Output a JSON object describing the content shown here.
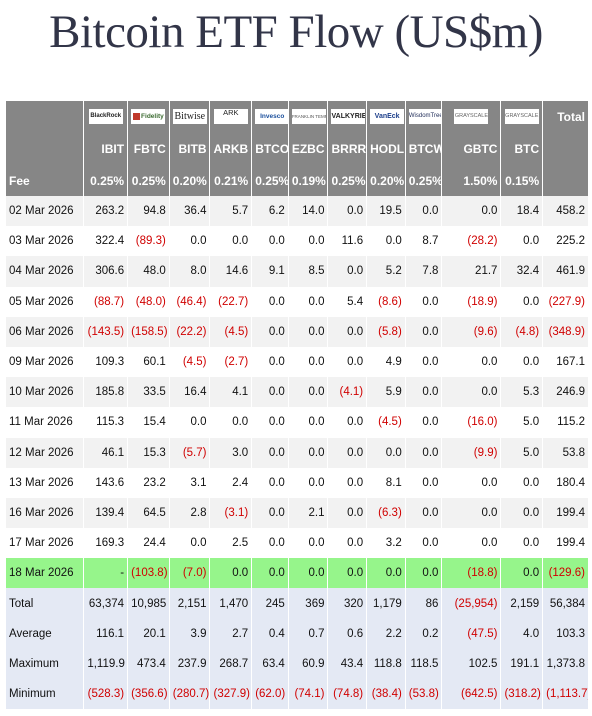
{
  "title": "Bitcoin ETF Flow (US$m)",
  "header": {
    "logos": [
      {
        "name": "blackrock-logo",
        "text": "BlackRock"
      },
      {
        "name": "fidelity-logo",
        "text": "Fidelity"
      },
      {
        "name": "bitwise-logo",
        "text": "Bitwise"
      },
      {
        "name": "ark-logo",
        "text": "ARK"
      },
      {
        "name": "invesco-logo",
        "text": "Invesco"
      },
      {
        "name": "franklin-templeton-logo",
        "text": "FRANKLIN TEMPLETON"
      },
      {
        "name": "valkyrie-logo",
        "text": "VALKYRIE"
      },
      {
        "name": "vaneck-logo",
        "text": "VanEck"
      },
      {
        "name": "wisdomtree-logo",
        "text": "WisdomTree"
      },
      {
        "name": "grayscale-logo",
        "text": "GRAYSCALE"
      },
      {
        "name": "grayscale-mini-logo",
        "text": "GRAYSCALE"
      }
    ],
    "total_label": "Total",
    "tickers": [
      "IBIT",
      "FBTC",
      "BITB",
      "ARKB",
      "BTCO",
      "EZBC",
      "BRRR",
      "HODL",
      "BTCW",
      "GBTC",
      "BTC"
    ],
    "fee_label": "Fee",
    "fees": [
      "0.25%",
      "0.25%",
      "0.20%",
      "0.21%",
      "0.25%",
      "0.19%",
      "0.25%",
      "0.20%",
      "0.25%",
      "1.50%",
      "0.15%"
    ]
  },
  "rows": [
    {
      "date": "02 Mar 2026",
      "values": [
        "263.2",
        "94.8",
        "36.4",
        "5.7",
        "6.2",
        "14.0",
        "0.0",
        "19.5",
        "0.0",
        "0.0",
        "18.4"
      ],
      "total": "458.2"
    },
    {
      "date": "03 Mar 2026",
      "values": [
        "322.4",
        "(89.3)",
        "0.0",
        "0.0",
        "0.0",
        "0.0",
        "11.6",
        "0.0",
        "8.7",
        "(28.2)",
        "0.0"
      ],
      "total": "225.2"
    },
    {
      "date": "04 Mar 2026",
      "values": [
        "306.6",
        "48.0",
        "8.0",
        "14.6",
        "9.1",
        "8.5",
        "0.0",
        "5.2",
        "7.8",
        "21.7",
        "32.4"
      ],
      "total": "461.9"
    },
    {
      "date": "05 Mar 2026",
      "values": [
        "(88.7)",
        "(48.0)",
        "(46.4)",
        "(22.7)",
        "0.0",
        "0.0",
        "5.4",
        "(8.6)",
        "0.0",
        "(18.9)",
        "0.0"
      ],
      "total": "(227.9)"
    },
    {
      "date": "06 Mar 2026",
      "values": [
        "(143.5)",
        "(158.5)",
        "(22.2)",
        "(4.5)",
        "0.0",
        "0.0",
        "0.0",
        "(5.8)",
        "0.0",
        "(9.6)",
        "(4.8)"
      ],
      "total": "(348.9)"
    },
    {
      "date": "09 Mar 2026",
      "values": [
        "109.3",
        "60.1",
        "(4.5)",
        "(2.7)",
        "0.0",
        "0.0",
        "0.0",
        "4.9",
        "0.0",
        "0.0",
        "0.0"
      ],
      "total": "167.1"
    },
    {
      "date": "10 Mar 2026",
      "values": [
        "185.8",
        "33.5",
        "16.4",
        "4.1",
        "0.0",
        "0.0",
        "(4.1)",
        "5.9",
        "0.0",
        "0.0",
        "5.3"
      ],
      "total": "246.9"
    },
    {
      "date": "11 Mar 2026",
      "values": [
        "115.3",
        "15.4",
        "0.0",
        "0.0",
        "0.0",
        "0.0",
        "0.0",
        "(4.5)",
        "0.0",
        "(16.0)",
        "5.0"
      ],
      "total": "115.2"
    },
    {
      "date": "12 Mar 2026",
      "values": [
        "46.1",
        "15.3",
        "(5.7)",
        "3.0",
        "0.0",
        "0.0",
        "0.0",
        "0.0",
        "0.0",
        "(9.9)",
        "5.0"
      ],
      "total": "53.8"
    },
    {
      "date": "13 Mar 2026",
      "values": [
        "143.6",
        "23.2",
        "3.1",
        "2.4",
        "0.0",
        "0.0",
        "0.0",
        "8.1",
        "0.0",
        "0.0",
        "0.0"
      ],
      "total": "180.4"
    },
    {
      "date": "16 Mar 2026",
      "values": [
        "139.4",
        "64.5",
        "2.8",
        "(3.1)",
        "0.0",
        "2.1",
        "0.0",
        "(6.3)",
        "0.0",
        "0.0",
        "0.0"
      ],
      "total": "199.4"
    },
    {
      "date": "17 Mar 2026",
      "values": [
        "169.3",
        "24.4",
        "0.0",
        "2.5",
        "0.0",
        "0.0",
        "0.0",
        "3.2",
        "0.0",
        "0.0",
        "0.0"
      ],
      "total": "199.4"
    },
    {
      "date": "18 Mar 2026",
      "values": [
        "-",
        "(103.8)",
        "(7.0)",
        "0.0",
        "0.0",
        "0.0",
        "0.0",
        "0.0",
        "0.0",
        "(18.8)",
        "0.0"
      ],
      "total": "(129.6)",
      "highlight": true
    }
  ],
  "stats": [
    {
      "label": "Total",
      "values": [
        "63,374",
        "10,985",
        "2,151",
        "1,470",
        "245",
        "369",
        "320",
        "1,179",
        "86",
        "(25,954)",
        "2,159"
      ],
      "total": "56,384"
    },
    {
      "label": "Average",
      "values": [
        "116.1",
        "20.1",
        "3.9",
        "2.7",
        "0.4",
        "0.7",
        "0.6",
        "2.2",
        "0.2",
        "(47.5)",
        "4.0"
      ],
      "total": "103.3"
    },
    {
      "label": "Maximum",
      "values": [
        "1,119.9",
        "473.4",
        "237.9",
        "268.7",
        "63.4",
        "60.9",
        "43.4",
        "118.8",
        "118.5",
        "102.5",
        "191.1"
      ],
      "total": "1,373.8"
    },
    {
      "label": "Minimum",
      "values": [
        "(528.3)",
        "(356.6)",
        "(280.7)",
        "(327.9)",
        "(62.0)",
        "(74.1)",
        "(74.8)",
        "(38.4)",
        "(53.8)",
        "(642.5)",
        "(318.2)"
      ],
      "total": "(1,113.7)"
    }
  ],
  "colors": {
    "header_bg": "#868686",
    "negative": "#d00000",
    "highlight_row": "#96f58b",
    "stats_bg": "#e4e9f4",
    "title": "#323548"
  }
}
